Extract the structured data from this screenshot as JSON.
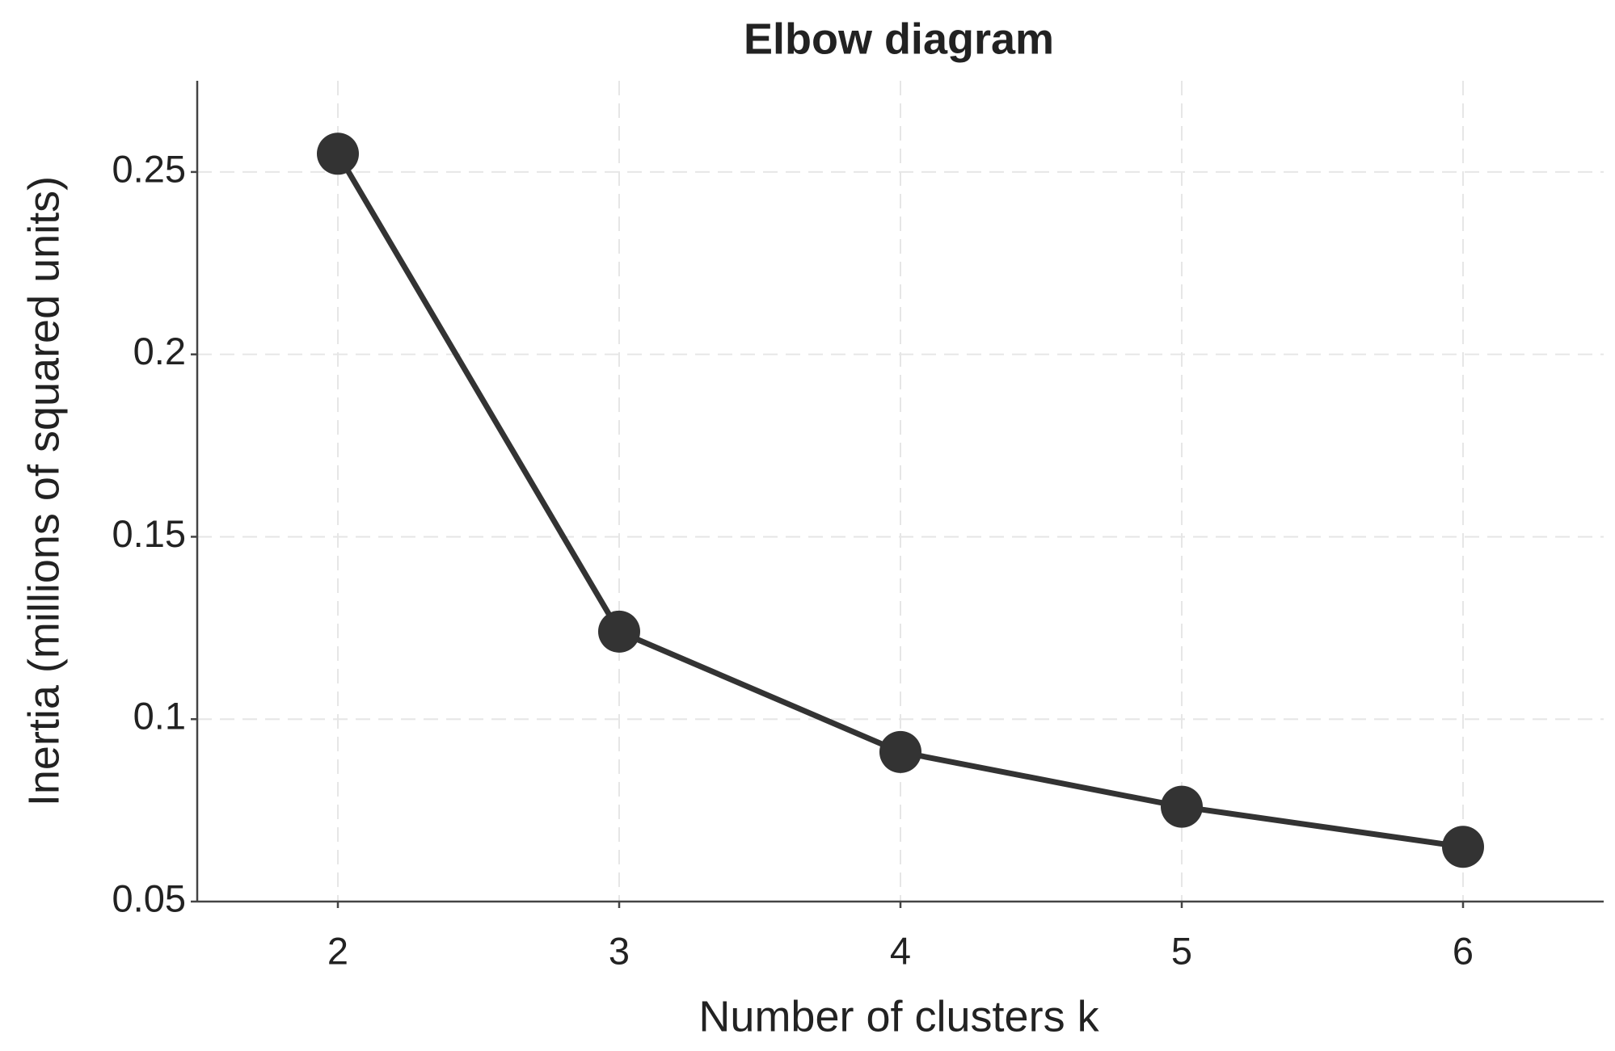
{
  "chart_data": {
    "type": "line",
    "title": "Elbow diagram",
    "x_label": "Number of clusters k",
    "y_label": "Inertia (millions of squared units)",
    "x": [
      2,
      3,
      4,
      5,
      6
    ],
    "values": [
      0.255,
      0.124,
      0.091,
      0.076,
      0.065
    ],
    "color": "#333333",
    "xlim": [
      1.5,
      6.5
    ],
    "xticks": [
      2,
      3,
      4,
      5,
      6
    ],
    "ylim": [
      0.05,
      0.275
    ],
    "yticks": [
      0.05,
      0.1,
      0.15,
      0.2,
      0.25
    ],
    "grid": true
  }
}
